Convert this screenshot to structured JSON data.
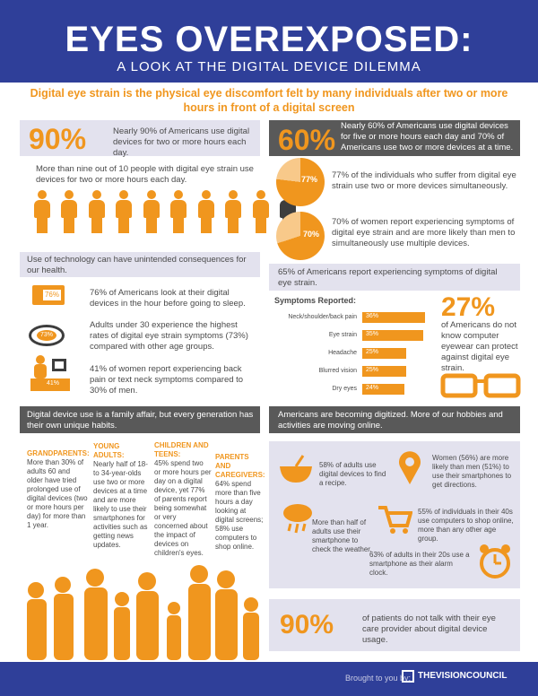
{
  "header": {
    "title": "EYES OVEREXPOSED:",
    "subtitle": "A LOOK AT THE DIGITAL DEVICE DILEMMA"
  },
  "intro": "Digital eye strain is the physical eye discomfort felt by many individuals after two or more hours in front of a digital screen",
  "left": {
    "stat90": {
      "pct": "90%",
      "text": "Nearly 90% of Americans use digital devices for two or more hours each day."
    },
    "nine_of_ten": "More than nine out of 10 people with digital eye strain use devices for two or more hours each day.",
    "tech_band": "Use of technology can have unintended consequences for our health.",
    "items": [
      {
        "badge": "76%",
        "text": "76% of Americans look at their digital devices in the hour before going to sleep."
      },
      {
        "badge": "73%",
        "text": "Adults under 30 experience the highest rates of digital eye strain symptoms (73%) compared with other age groups."
      },
      {
        "badge": "41%",
        "text": "41% of women report experiencing back pain or text neck symptoms compared to 30% of men."
      }
    ],
    "family_band": "Digital device use is a family affair, but every generation has their own unique habits.",
    "generations": [
      {
        "head": "GRANDPARENTS:",
        "text": "More than 30% of adults 60 and older have tried prolonged use of digital devices (two or more hours per day) for more than 1 year."
      },
      {
        "head": "YOUNG ADULTS:",
        "text": "Nearly half of 18- to 34-year-olds use two or more devices at a time and are more likely to use their smartphones for activities such as getting news updates."
      },
      {
        "head": "CHILDREN AND TEENS:",
        "text": "45% spend two or more hours per day on a digital device, yet 77% of parents report being somewhat or very concerned about the impact of devices on children's eyes."
      },
      {
        "head": "PARENTS AND CAREGIVERS:",
        "text": "64% spend more than five hours a day looking at digital screens; 58% use computers to shop online."
      }
    ]
  },
  "right": {
    "stat60": {
      "pct": "60%",
      "text": "Nearly 60% of Americans use digital devices for five or more hours each day and 70% of Americans use two or more devices at a time."
    },
    "pies": [
      {
        "label": "77%",
        "value": 0.77,
        "text": "77% of the individuals who suffer from digital eye strain use two or more devices simultaneously."
      },
      {
        "label": "70%",
        "value": 0.7,
        "text": "70% of women report experiencing symptoms of digital eye strain and are more likely than men to simultaneously use multiple devices."
      }
    ],
    "symptoms_band": "65% of Americans report experiencing symptoms of digital eye strain.",
    "symptoms_title": "Symptoms Reported:",
    "stat27": {
      "pct": "27%",
      "text": "of Americans do not know computer eyewear can protect against digital eye strain."
    },
    "digitized_band": "Americans are becoming digitized. More of our hobbies and activities are moving online.",
    "digitized": [
      {
        "text": "58% of adults use digital devices to find a recipe."
      },
      {
        "text": "Women (56%) are more likely than men (51%) to use their smartphones to get directions."
      },
      {
        "text": "More than half of adults use their smartphone to check the weather."
      },
      {
        "text": "55% of individuals in their 40s use computers to shop online, more than any other age group."
      },
      {
        "text": "63% of adults in their 20s use a smartphone as their alarm clock."
      }
    ],
    "stat90b": {
      "pct": "90%",
      "text": "of patients do not talk with their eye care provider about digital device usage."
    }
  },
  "chart_data": {
    "type": "bar",
    "title": "Symptoms Reported:",
    "categories": [
      "Neck/shoulder/back pain",
      "Eye strain",
      "Headache",
      "Blurred vision",
      "Dry eyes"
    ],
    "values": [
      36,
      35,
      25,
      25,
      24
    ],
    "labels": [
      "36%",
      "35%",
      "25%",
      "25%",
      "24%"
    ],
    "xlim": [
      0,
      40
    ]
  },
  "footer": {
    "brought_by": "Brought to you by:",
    "logo": "THEVISIONCOUNCIL"
  },
  "colors": {
    "orange": "#f0961e",
    "navy": "#2f3f99",
    "gray": "#595959",
    "lavender": "#e3e2ee"
  }
}
